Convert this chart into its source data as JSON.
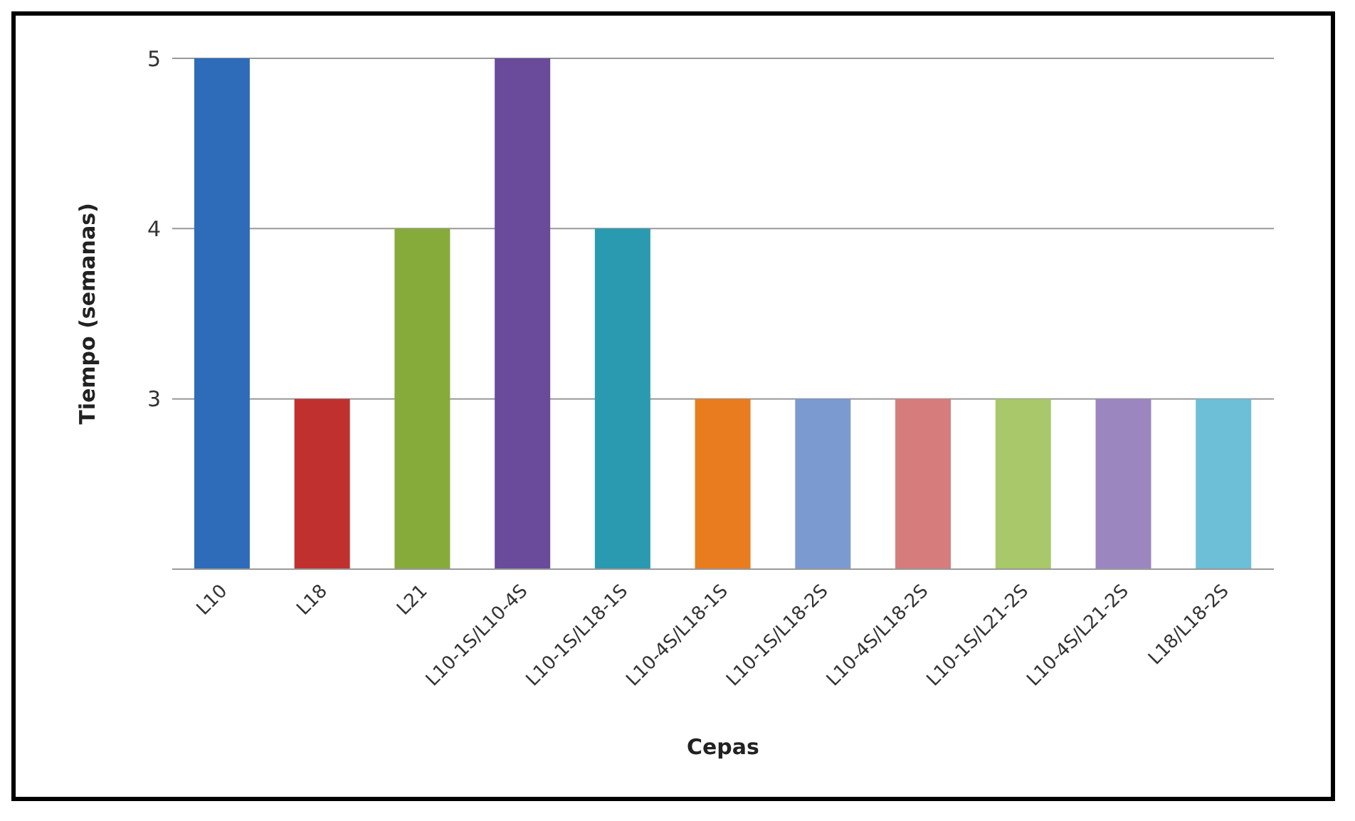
{
  "chart_data": {
    "type": "bar",
    "xlabel": "Cepas",
    "ylabel": "Tiempo (semanas)",
    "categories": [
      "L10",
      "L18",
      "L21",
      "L10-1S/L10-4S",
      "L10-1S/L18-1S",
      "L10-4S/L18-1S",
      "L10-1S/L18-2S",
      "L10-4S/L18-2S",
      "L10-1S/L21-2S",
      "L10-4S/L21-2S",
      "L18/L18-2S"
    ],
    "values": [
      5,
      3,
      4,
      5,
      4,
      3,
      3,
      3,
      3,
      3,
      3
    ],
    "colors": [
      "#2e6bb8",
      "#c0302f",
      "#86ab3a",
      "#6a4a9a",
      "#2a9ab0",
      "#e87c1e",
      "#7b9ad0",
      "#d77c7c",
      "#a9c86a",
      "#9c86c0",
      "#6cbfd6"
    ],
    "ylim": [
      2,
      5
    ],
    "yticks": [
      {
        "value": 2,
        "label": null
      },
      3,
      4,
      5
    ],
    "grid": "y"
  }
}
